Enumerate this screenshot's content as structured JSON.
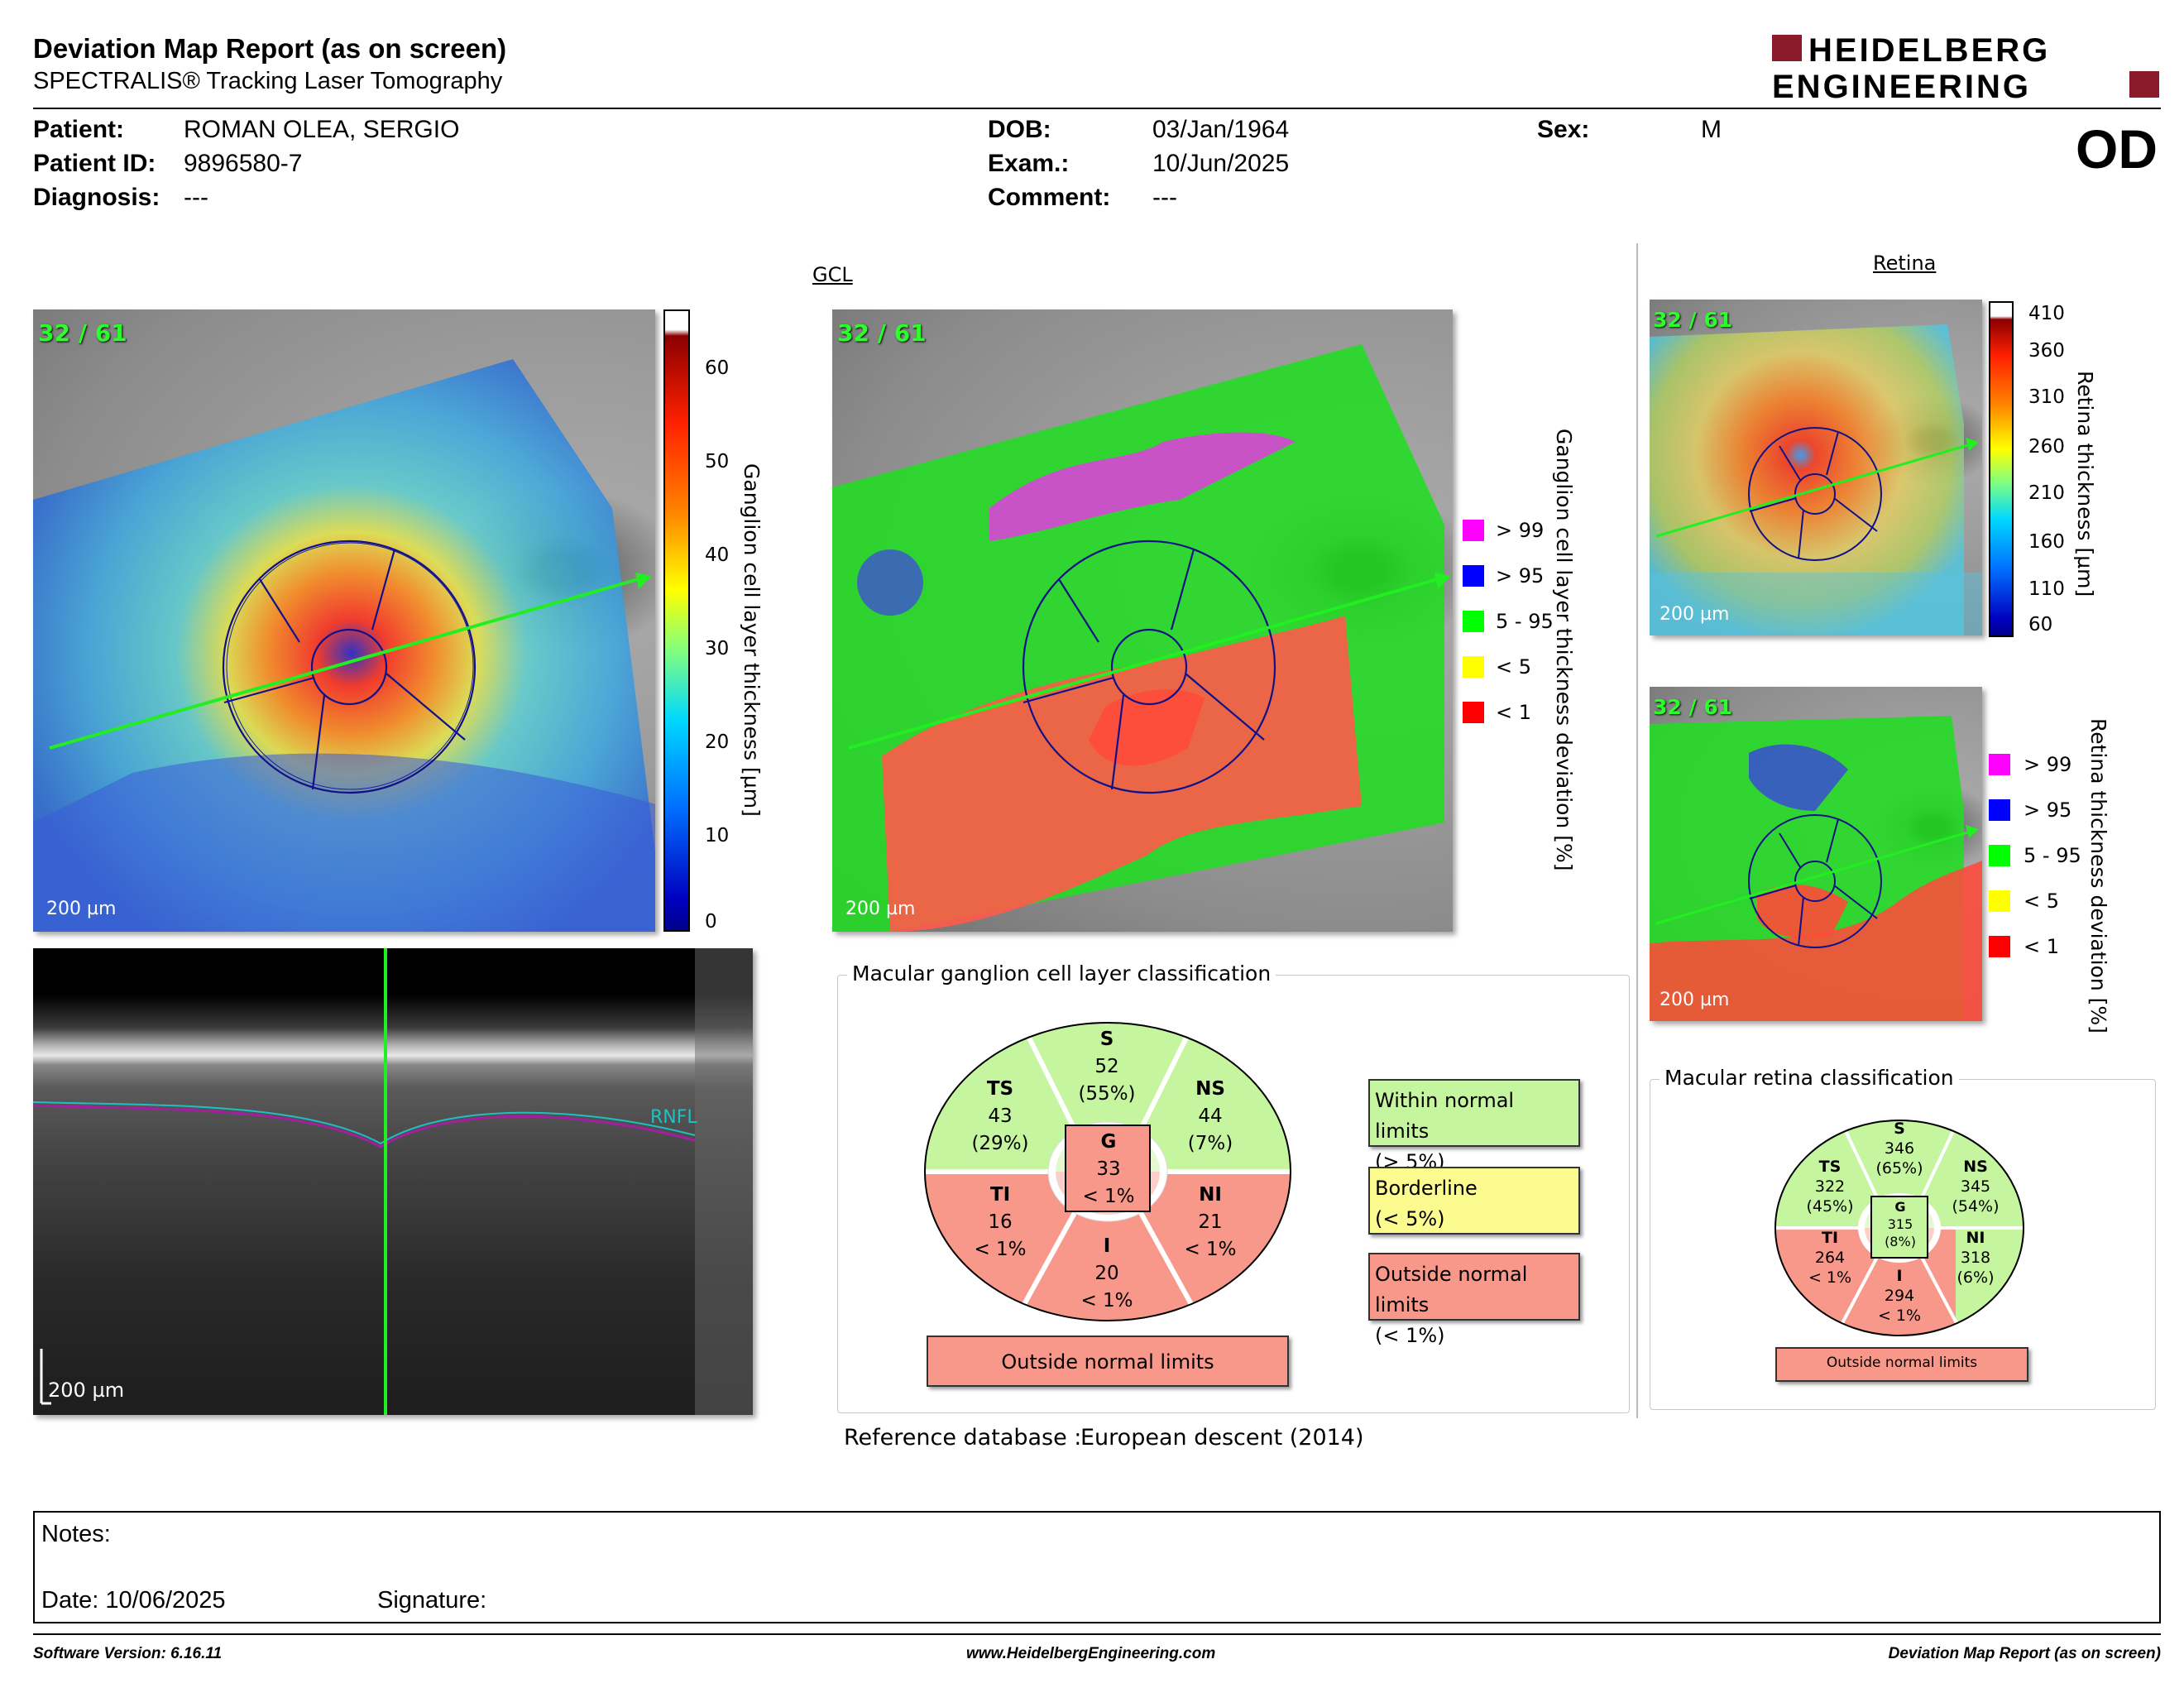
{
  "header": {
    "title": "Deviation Map Report (as on screen)",
    "subtitle": "SPECTRALIS® Tracking Laser Tomography",
    "logo_line1": "HEIDELBERG",
    "logo_line2": "ENGINEERING"
  },
  "patient": {
    "patient_label": "Patient:",
    "patient_value": "ROMAN OLEA, SERGIO",
    "id_label": "Patient ID:",
    "id_value": "9896580-7",
    "diag_label": "Diagnosis:",
    "diag_value": "---",
    "dob_label": "DOB:",
    "dob_value": "03/Jan/1964",
    "exam_label": "Exam.:",
    "exam_value": "10/Jun/2025",
    "comment_label": "Comment:",
    "comment_value": "---",
    "sex_label": "Sex:",
    "sex_value": "M",
    "eye": "OD"
  },
  "gcl": {
    "section": "GCL",
    "frame": "32 / 61",
    "scale": "200 µm",
    "thickness_label": "Ganglion cell layer thickness [µm]",
    "thickness_ticks": [
      "60",
      "50",
      "40",
      "30",
      "20",
      "10",
      "0"
    ],
    "deviation_label": "Ganglion cell layer thickness deviation [%]",
    "legend": [
      {
        "label": "> 99",
        "color": "#ff00ff"
      },
      {
        "label": "> 95",
        "color": "#0000ff"
      },
      {
        "label": "5 - 95",
        "color": "#00ff00"
      },
      {
        "label": "< 5",
        "color": "#ffff00"
      },
      {
        "label": "< 1",
        "color": "#ff0000"
      }
    ]
  },
  "oct": {
    "scale": "200 µm",
    "layer": "RNFL"
  },
  "retina": {
    "section": "Retina",
    "frame": "32 / 61",
    "scale": "200 µm",
    "thickness_label": "Retina thickness [µm]",
    "thickness_ticks": [
      "410",
      "360",
      "310",
      "260",
      "210",
      "160",
      "110",
      "60"
    ],
    "deviation_label": "Retina thickness deviation [%]",
    "legend": [
      {
        "label": "> 99",
        "color": "#ff00ff"
      },
      {
        "label": "> 95",
        "color": "#0000ff"
      },
      {
        "label": "5 - 95",
        "color": "#00ff00"
      },
      {
        "label": "< 5",
        "color": "#ffff00"
      },
      {
        "label": "< 1",
        "color": "#ff0000"
      }
    ]
  },
  "gcl_class": {
    "title": "Macular ganglion cell layer classification",
    "S": {
      "name": "S",
      "v": "52",
      "p": "(55%)"
    },
    "TS": {
      "name": "TS",
      "v": "43",
      "p": "(29%)"
    },
    "NS": {
      "name": "NS",
      "v": "44",
      "p": "(7%)"
    },
    "G": {
      "name": "G",
      "v": "33",
      "p": "< 1%"
    },
    "TI": {
      "name": "TI",
      "v": "16",
      "p": "< 1%"
    },
    "NI": {
      "name": "NI",
      "v": "21",
      "p": "< 1%"
    },
    "I": {
      "name": "I",
      "v": "20",
      "p": "< 1%"
    },
    "result": "Outside normal limits",
    "key": [
      {
        "l1": "Within normal limits",
        "l2": "(> 5%)",
        "color": "#c6f5a0"
      },
      {
        "l1": "Borderline",
        "l2": "(< 5%)",
        "color": "#fbfb8f"
      },
      {
        "l1": "Outside normal limits",
        "l2": "(< 1%)",
        "color": "#f8988a"
      }
    ]
  },
  "ret_class": {
    "title": "Macular retina classification",
    "S": {
      "name": "S",
      "v": "346",
      "p": "(65%)"
    },
    "TS": {
      "name": "TS",
      "v": "322",
      "p": "(45%)"
    },
    "NS": {
      "name": "NS",
      "v": "345",
      "p": "(54%)"
    },
    "G": {
      "name": "G",
      "v": "315",
      "p": "(8%)"
    },
    "TI": {
      "name": "TI",
      "v": "264",
      "p": "< 1%"
    },
    "NI": {
      "name": "NI",
      "v": "318",
      "p": "(6%)"
    },
    "I": {
      "name": "I",
      "v": "294",
      "p": "< 1%"
    },
    "result": "Outside normal limits"
  },
  "reference": {
    "label": "Reference database :",
    "value": "European descent (2014)"
  },
  "notes": {
    "label": "Notes:",
    "date": "Date: 10/06/2025",
    "signature": "Signature:"
  },
  "footer": {
    "software": "Software Version: 6.16.11",
    "website": "www.HeidelbergEngineering.com",
    "report": "Deviation Map Report (as on screen)"
  }
}
